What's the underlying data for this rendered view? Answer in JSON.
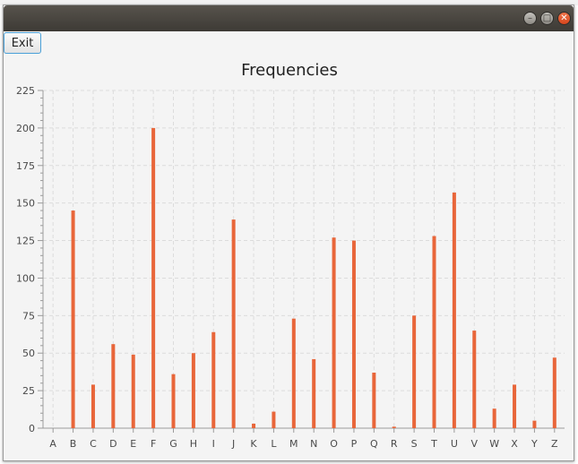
{
  "window": {
    "title": "",
    "controls": [
      "minimize-icon",
      "maximize-icon",
      "close-icon"
    ],
    "exit_label": "Exit"
  },
  "colors": {
    "bar": "#e8663a",
    "grid": "#dcdcdc",
    "axis": "#9b9b9b",
    "tick_text": "#4a4a4a"
  },
  "chart_data": {
    "type": "bar",
    "title": "Frequencies",
    "xlabel": "",
    "ylabel": "",
    "ylim": [
      0,
      225
    ],
    "yticks": [
      0,
      25,
      50,
      75,
      100,
      125,
      150,
      175,
      200,
      225
    ],
    "grid": true,
    "legend": "none",
    "categories": [
      "A",
      "B",
      "C",
      "D",
      "E",
      "F",
      "G",
      "H",
      "I",
      "J",
      "K",
      "L",
      "M",
      "N",
      "O",
      "P",
      "Q",
      "R",
      "S",
      "T",
      "U",
      "V",
      "W",
      "X",
      "Y",
      "Z"
    ],
    "values": [
      0,
      145,
      29,
      56,
      49,
      200,
      36,
      50,
      64,
      139,
      3,
      11,
      73,
      46,
      127,
      125,
      37,
      1,
      75,
      128,
      157,
      65,
      13,
      29,
      5,
      47
    ]
  }
}
